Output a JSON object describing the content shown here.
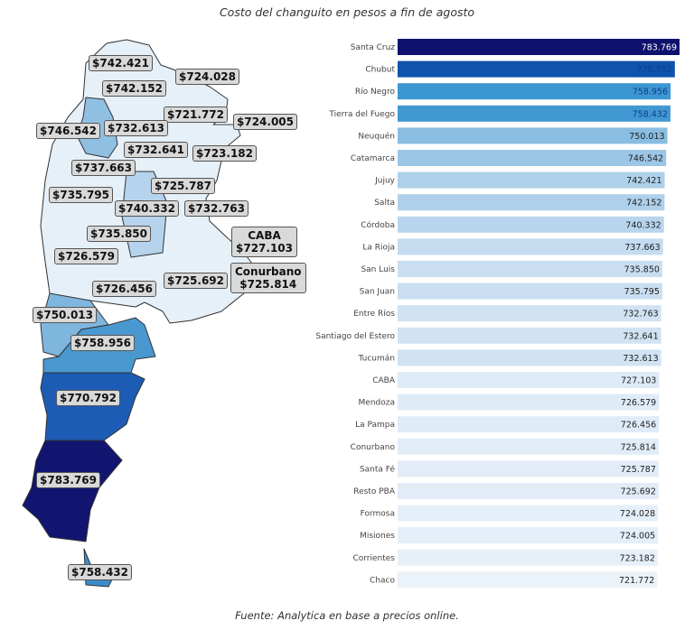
{
  "title": "Costo del changuito en pesos a fin de agosto",
  "source": "Fuente: Analytica en base a precios online.",
  "chart_data": {
    "type": "bar",
    "orientation": "horizontal",
    "title": "Costo del changuito en pesos a fin de agosto",
    "categories": [
      "Santa Cruz",
      "Chubut",
      "Río Negro",
      "Tierra del Fuego",
      "Neuquén",
      "Catamarca",
      "Jujuy",
      "Salta",
      "Córdoba",
      "La Rioja",
      "San Luis",
      "San Juan",
      "Entre Ríos",
      "Santiago del Estero",
      "Tucumán",
      "CABA",
      "Mendoza",
      "La Pampa",
      "Conurbano",
      "Santa Fé",
      "Resto PBA",
      "Formosa",
      "Misiones",
      "Corrientes",
      "Chaco"
    ],
    "values": [
      783769,
      770792,
      758956,
      758432,
      750013,
      746542,
      742421,
      742152,
      740332,
      737663,
      735850,
      735795,
      732763,
      732641,
      732613,
      727103,
      726579,
      726456,
      725814,
      725787,
      725692,
      724028,
      724005,
      723182,
      721772
    ],
    "value_labels": [
      "783.769",
      "770.792",
      "758.956",
      "758.432",
      "750.013",
      "746.542",
      "742.421",
      "742.152",
      "740.332",
      "737.663",
      "735.850",
      "735.795",
      "732.763",
      "732.641",
      "732.613",
      "727.103",
      "726.579",
      "726.456",
      "725.814",
      "725.787",
      "725.692",
      "724.028",
      "724.005",
      "723.182",
      "721.772"
    ],
    "xlim": [
      0,
      783769
    ],
    "colorscale": [
      "#e8f1fa",
      "#0b0f66"
    ],
    "grid": false
  },
  "map_labels": [
    {
      "region": "Jujuy",
      "text": "$742.421"
    },
    {
      "region": "Salta",
      "text": "$742.152"
    },
    {
      "region": "Formosa",
      "text": "$724.028"
    },
    {
      "region": "Chaco",
      "text": "$721.772"
    },
    {
      "region": "Misiones",
      "text": "$724.005"
    },
    {
      "region": "Catamarca",
      "text": "$746.542"
    },
    {
      "region": "Tucumán",
      "text": "$732.613"
    },
    {
      "region": "Santiago del Estero",
      "text": "$732.641"
    },
    {
      "region": "Corrientes",
      "text": "$723.182"
    },
    {
      "region": "La Rioja",
      "text": "$737.663"
    },
    {
      "region": "Santa Fé",
      "text": "$725.787"
    },
    {
      "region": "San Juan",
      "text": "$735.795"
    },
    {
      "region": "Córdoba",
      "text": "$740.332"
    },
    {
      "region": "Entre Ríos",
      "text": "$732.763"
    },
    {
      "region": "San Luis",
      "text": "$735.850"
    },
    {
      "region": "CABA",
      "name": "CABA",
      "text": "$727.103"
    },
    {
      "region": "Mendoza",
      "text": "$726.579"
    },
    {
      "region": "Resto PBA",
      "text": "$725.692"
    },
    {
      "region": "Conurbano",
      "name": "Conurbano",
      "text": "$725.814"
    },
    {
      "region": "La Pampa",
      "text": "$726.456"
    },
    {
      "region": "Neuquén",
      "text": "$750.013"
    },
    {
      "region": "Río Negro",
      "text": "$758.956"
    },
    {
      "region": "Chubut",
      "text": "$770.792"
    },
    {
      "region": "Santa Cruz",
      "text": "$783.769"
    },
    {
      "region": "Tierra del Fuego",
      "text": "$758.432"
    }
  ]
}
